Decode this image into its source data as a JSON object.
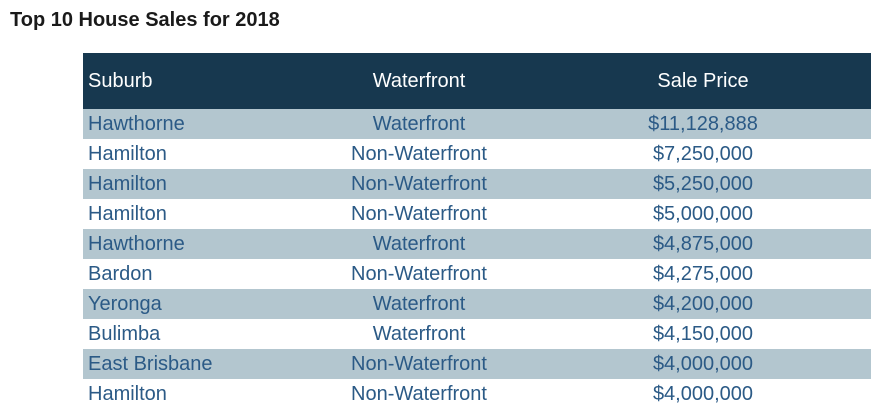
{
  "title": "Top 10 House Sales for 2018",
  "columns": [
    "Suburb",
    "Waterfront",
    "Sale Price"
  ],
  "rows": [
    {
      "suburb": "Hawthorne",
      "waterfront": "Waterfront",
      "price": "$11,128,888"
    },
    {
      "suburb": "Hamilton",
      "waterfront": "Non-Waterfront",
      "price": "$7,250,000"
    },
    {
      "suburb": "Hamilton",
      "waterfront": "Non-Waterfront",
      "price": "$5,250,000"
    },
    {
      "suburb": "Hamilton",
      "waterfront": "Non-Waterfront",
      "price": "$5,000,000"
    },
    {
      "suburb": "Hawthorne",
      "waterfront": "Waterfront",
      "price": "$4,875,000"
    },
    {
      "suburb": "Bardon",
      "waterfront": "Non-Waterfront",
      "price": "$4,275,000"
    },
    {
      "suburb": "Yeronga",
      "waterfront": "Waterfront",
      "price": "$4,200,000"
    },
    {
      "suburb": "Bulimba",
      "waterfront": "Waterfront",
      "price": "$4,150,000"
    },
    {
      "suburb": "East Brisbane",
      "waterfront": "Non-Waterfront",
      "price": "$4,000,000"
    },
    {
      "suburb": "Hamilton",
      "waterfront": "Non-Waterfront",
      "price": "$4,000,000"
    }
  ],
  "colors": {
    "header_bg": "#17384f",
    "header_text": "#ffffff",
    "band_bg": "#b3c6cf",
    "cell_text": "#2b5a86"
  }
}
